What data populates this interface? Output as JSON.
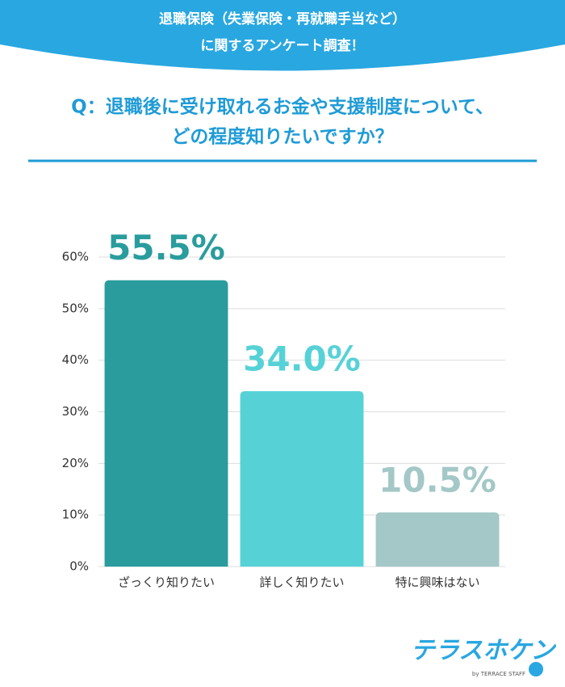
{
  "header": {
    "lines": [
      "退職保険（失業保険・再就職手当など）",
      "に関するアンケート調査！"
    ]
  },
  "question": {
    "lines": [
      "Q：退職後に受け取れるお金や支援制度について、",
      "どの程度知りたいですか？"
    ]
  },
  "chart_data": {
    "type": "bar",
    "categories": [
      "ざっくり知りたい",
      "詳しく知りたい",
      "特に興味はない"
    ],
    "values": [
      55.5,
      34.0,
      10.5
    ],
    "value_labels": [
      "55.5%",
      "34.0%",
      "10.5%"
    ],
    "colors": [
      "#2a9c9d",
      "#56d2d7",
      "#a4c7c7"
    ],
    "ylim": [
      0,
      60
    ],
    "yticks": [
      {
        "value": 0,
        "label": "0%"
      },
      {
        "value": 10,
        "label": "10%"
      },
      {
        "value": 20,
        "label": "20%"
      },
      {
        "value": 30,
        "label": "30%"
      },
      {
        "value": 40,
        "label": "40%"
      },
      {
        "value": 50,
        "label": "50%"
      },
      {
        "value": 60,
        "label": "60%"
      }
    ],
    "grid": true
  },
  "logo": {
    "name": "テラスホケン",
    "by": "by TERRACE STAFF"
  }
}
